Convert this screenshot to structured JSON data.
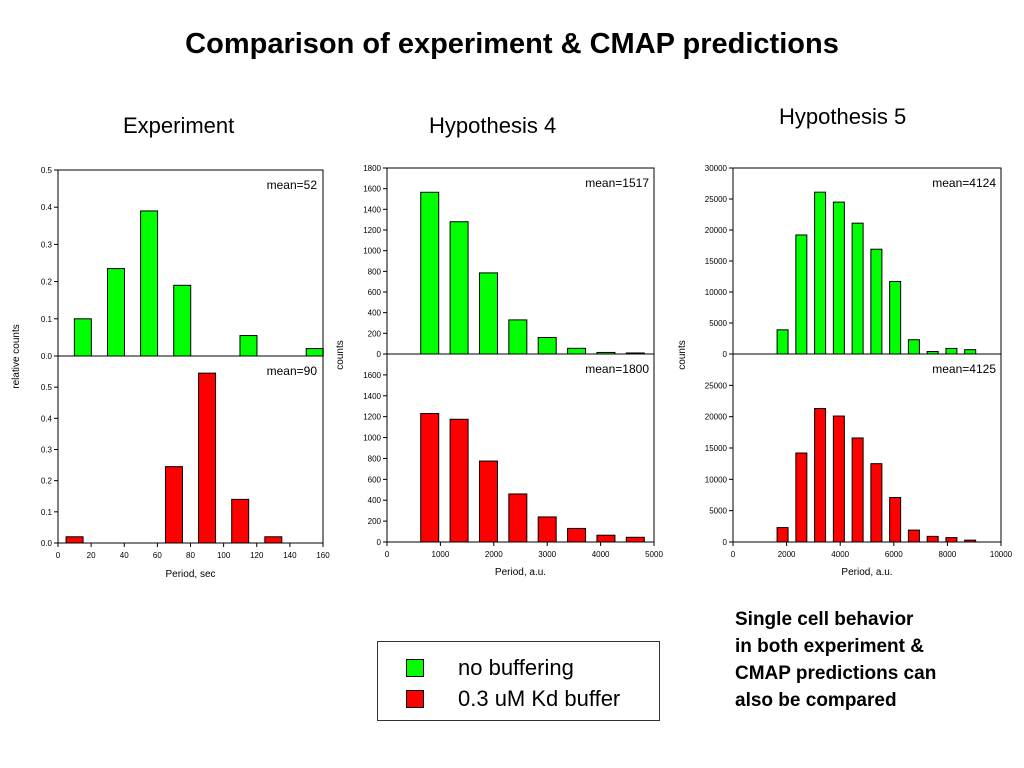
{
  "title": "Comparison of experiment & CMAP predictions",
  "colors": {
    "green": "#00ff00",
    "red": "#ff0000"
  },
  "legend": [
    {
      "label": "no buffering",
      "color": "#00ff00"
    },
    {
      "label": "0.3 uM Kd buffer",
      "color": "#ff0000"
    }
  ],
  "note": "Single cell behavior\nin both experiment &\nCMAP predictions can\nalso be compared",
  "chart_data": [
    {
      "type": "bar",
      "title": "Experiment",
      "xlabel": "Period, sec",
      "ylabel": "relative counts",
      "xlim": [
        0,
        160
      ],
      "xticks": [
        "0",
        "20",
        "40",
        "60",
        "80",
        "100",
        "120",
        "140",
        "160"
      ],
      "panels": [
        {
          "series": "no buffering",
          "color": "#00ff00",
          "annotation": "mean=52",
          "ylim": [
            0,
            0.5
          ],
          "yticks": [
            "0.0",
            "0.1",
            "0.2",
            "0.3",
            "0.4",
            "0.5"
          ],
          "x": [
            15,
            35,
            55,
            75,
            115,
            155
          ],
          "values": [
            0.1,
            0.235,
            0.39,
            0.19,
            0.055,
            0.02
          ]
        },
        {
          "series": "0.3 uM Kd buffer",
          "color": "#ff0000",
          "annotation": "mean=90",
          "ylim": [
            0,
            0.6
          ],
          "yticks": [
            "0.0",
            "0.1",
            "0.2",
            "0.3",
            "0.4",
            "0.5"
          ],
          "x": [
            10,
            70,
            90,
            110,
            130
          ],
          "values": [
            0.02,
            0.245,
            0.545,
            0.14,
            0.02
          ]
        }
      ]
    },
    {
      "type": "bar",
      "title": "Hypothesis 4",
      "xlabel": "Period, a.u.",
      "ylabel": "counts",
      "xlim": [
        0,
        5000
      ],
      "xticks": [
        "0",
        "1000",
        "2000",
        "3000",
        "4000",
        "5000"
      ],
      "panels": [
        {
          "series": "no buffering",
          "color": "#00ff00",
          "annotation": "mean=1517",
          "ylim": [
            0,
            1800
          ],
          "yticks": [
            "0",
            "200",
            "400",
            "600",
            "800",
            "1000",
            "1200",
            "1400",
            "1600",
            "1800"
          ],
          "x": [
            800,
            1350,
            1900,
            2450,
            3000,
            3550,
            4100,
            4650
          ],
          "values": [
            1565,
            1280,
            785,
            330,
            160,
            55,
            15,
            10
          ]
        },
        {
          "series": "0.3 uM Kd buffer",
          "color": "#ff0000",
          "annotation": "mean=1800",
          "ylim": [
            0,
            1800
          ],
          "yticks": [
            "0",
            "200",
            "400",
            "600",
            "800",
            "1000",
            "1200",
            "1400",
            "1600"
          ],
          "x": [
            800,
            1350,
            1900,
            2450,
            3000,
            3550,
            4100,
            4650
          ],
          "values": [
            1230,
            1175,
            775,
            460,
            240,
            130,
            65,
            45
          ]
        }
      ]
    },
    {
      "type": "bar",
      "title": "Hypothesis 5",
      "xlabel": "Period, a.u.",
      "ylabel": "counts",
      "xlim": [
        0,
        10000
      ],
      "xticks": [
        "0",
        "2000",
        "4000",
        "6000",
        "8000",
        "10000"
      ],
      "panels": [
        {
          "series": "no buffering",
          "color": "#00ff00",
          "annotation": "mean=4124",
          "ylim": [
            0,
            30000
          ],
          "yticks": [
            "0",
            "5000",
            "10000",
            "15000",
            "20000",
            "25000",
            "30000"
          ],
          "x": [
            1850,
            2550,
            3250,
            3950,
            4650,
            5350,
            6050,
            6750,
            7450,
            8150,
            8850
          ],
          "values": [
            3900,
            19200,
            26100,
            24500,
            21100,
            16900,
            11700,
            2300,
            400,
            900,
            700
          ]
        },
        {
          "series": "0.3 uM Kd buffer",
          "color": "#ff0000",
          "annotation": "mean=4125",
          "ylim": [
            0,
            30000
          ],
          "yticks": [
            "0",
            "5000",
            "10000",
            "15000",
            "20000",
            "25000"
          ],
          "x": [
            1850,
            2550,
            3250,
            3950,
            4650,
            5350,
            6050,
            6750,
            7450,
            8150,
            8850
          ],
          "values": [
            2300,
            14200,
            21300,
            20100,
            16600,
            12500,
            7100,
            1900,
            900,
            700,
            300
          ]
        }
      ]
    }
  ]
}
